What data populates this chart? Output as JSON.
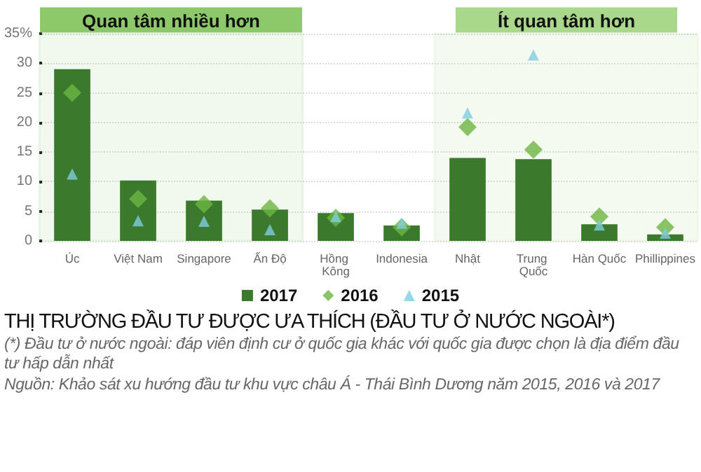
{
  "chart_data": {
    "type": "bar",
    "title": "THỊ TRƯỜNG ĐẦU TƯ ĐƯỢC ƯA THÍCH (ĐẦU TƯ Ở NƯỚC NGOÀI*)",
    "annotations": [
      "(*) Đầu tư ở nước ngoài: đáp viên định cư ở quốc gia khác với quốc gia được chọn là địa điểm đầu tư hấp dẫn nhất",
      "Nguồn: Khảo sát xu hướng đầu tư khu vực châu Á - Thái Bình Dương năm 2015, 2016 và 2017"
    ],
    "categories": [
      "Úc",
      "Việt Nam",
      "Singapore",
      "Ấn Độ",
      "Hồng Kông",
      "Indonesia",
      "Nhật",
      "Trung Quốc",
      "Hàn Quốc",
      "Phillippines"
    ],
    "series": [
      {
        "name": "2017",
        "color": "#3b7a2c",
        "values": [
          29.0,
          10.2,
          6.8,
          5.3,
          4.7,
          2.6,
          14.0,
          13.8,
          2.8,
          1.1
        ]
      },
      {
        "name": "2016",
        "type": "scatter",
        "marker": "diamond",
        "color": "#6db543",
        "values": [
          25.0,
          7.1,
          6.2,
          5.5,
          3.9,
          2.3,
          19.2,
          15.4,
          4.1,
          2.3
        ]
      },
      {
        "name": "2015",
        "type": "scatter",
        "marker": "triangle",
        "color": "#80cde0",
        "values": [
          11.3,
          3.4,
          3.3,
          1.9,
          4.1,
          3.0,
          21.6,
          31.4,
          2.7,
          1.3
        ]
      }
    ],
    "ylim": [
      0,
      35
    ],
    "yticks": [
      0,
      5,
      10,
      15,
      20,
      25,
      30,
      {
        "value": 35,
        "label": "35%"
      }
    ],
    "grid": "y",
    "legend": "bottom",
    "bands": [
      {
        "axis": "x",
        "from": "Úc",
        "to": "Ấn Độ",
        "label": "Quan tâm nhiều hơn",
        "color": "#8dc86a"
      },
      {
        "axis": "x",
        "from": "Nhật",
        "to": "Phillippines",
        "label": "Ít quan tâm hơn",
        "color": "#a9d88c"
      }
    ]
  }
}
